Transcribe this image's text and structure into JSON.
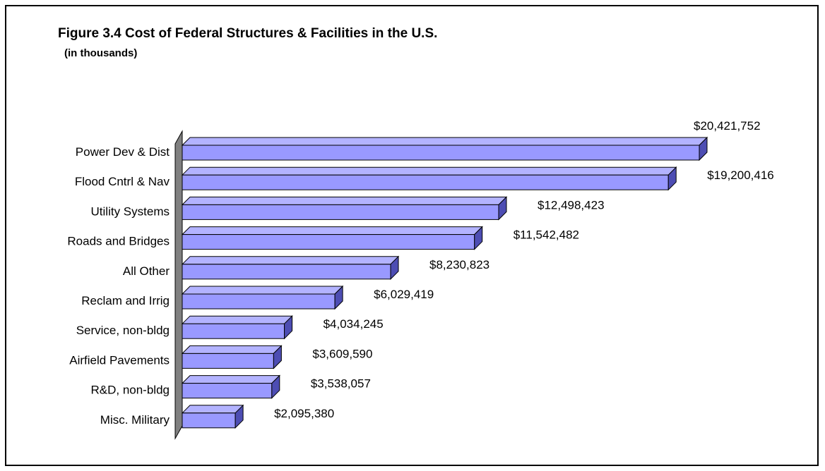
{
  "chart_data": {
    "type": "bar",
    "orientation": "horizontal",
    "style": "3d",
    "title": "Figure 3.4 Cost of Federal Structures & Facilities in the U.S.",
    "subtitle": "(in thousands)",
    "xlabel": "",
    "ylabel": "",
    "categories": [
      "Power Dev & Dist",
      "Flood Cntrl & Nav",
      "Utility Systems",
      "Roads and Bridges",
      "All Other",
      "Reclam and Irrig",
      "Service, non-bldg",
      "Airfield Pavements",
      "R&D, non-bldg",
      "Misc. Military"
    ],
    "values": [
      20421752,
      19200416,
      12498423,
      11542482,
      8230823,
      6029419,
      4034245,
      3609590,
      3538057,
      2095380
    ],
    "data_labels": [
      "$20,421,752",
      "$19,200,416",
      "$12,498,423",
      "$11,542,482",
      "$8,230,823",
      "$6,029,419",
      "$4,034,245",
      "$3,609,590",
      "$3,538,057",
      "$2,095,380"
    ],
    "xlim": [
      0,
      20421752
    ],
    "grid": false,
    "legend": "none",
    "colors": {
      "bar_front": "#9999ff",
      "bar_top": "#b3b3ff",
      "bar_side": "#4d4db3",
      "wall": "#808080",
      "outline": "#000000"
    }
  }
}
